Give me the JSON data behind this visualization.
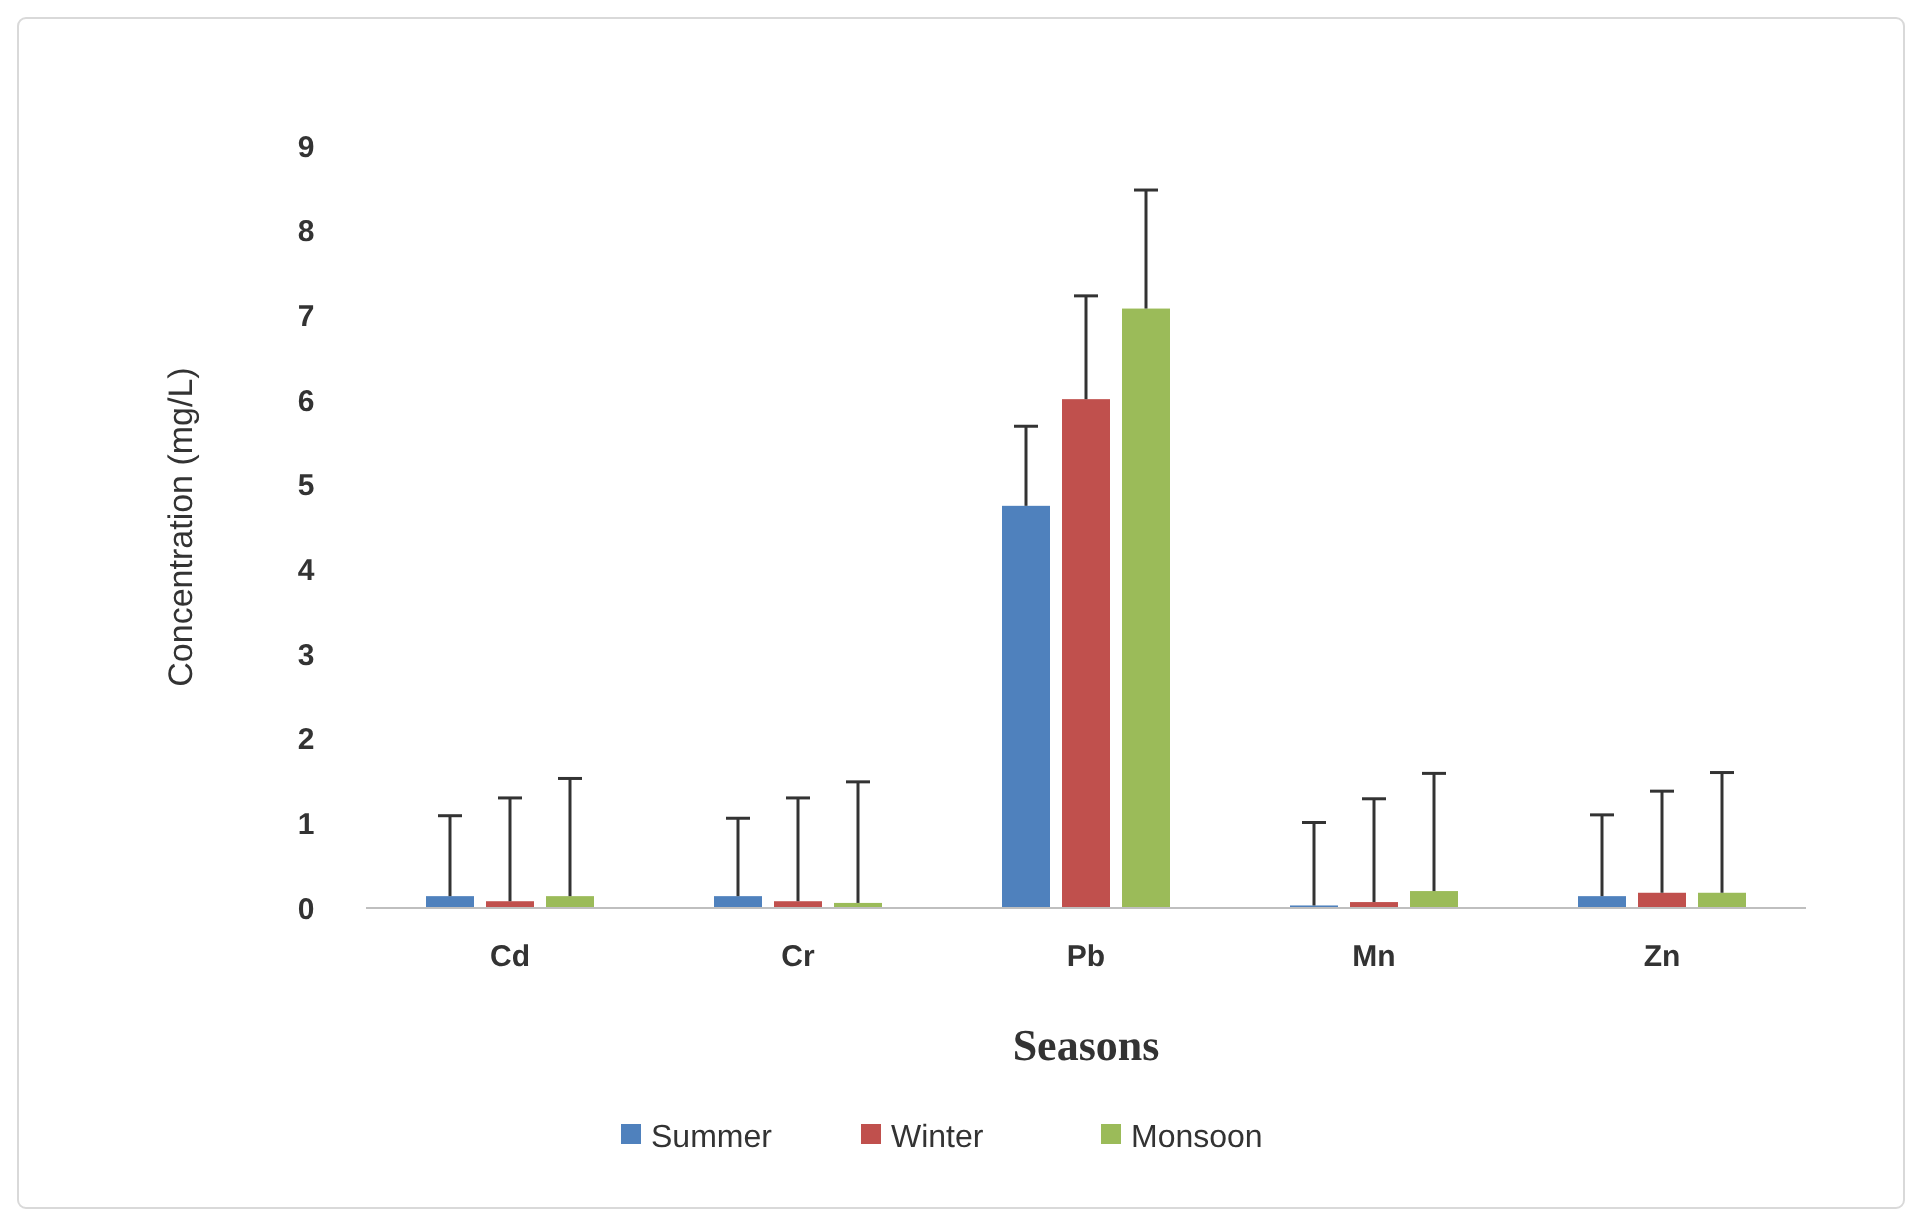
{
  "chart_data": {
    "type": "bar",
    "xlabel": "Seasons",
    "ylabel": "Concentration (mg/L)",
    "categories": [
      "Cd",
      "Cr",
      "Pb",
      "Mn",
      "Zn"
    ],
    "ylim": [
      0,
      9
    ],
    "yticks": [
      0,
      1,
      2,
      3,
      4,
      5,
      6,
      7,
      8,
      9
    ],
    "grid": false,
    "legend": "bottom",
    "series": [
      {
        "name": "Summer",
        "color": "#4f81bd",
        "values": [
          0.14,
          0.14,
          4.75,
          0.03,
          0.14
        ],
        "errors": [
          [
            0.14,
            1.09
          ],
          [
            0.14,
            1.06
          ],
          [
            4.75,
            5.69
          ],
          [
            0.03,
            1.01
          ],
          [
            0.14,
            1.1
          ]
        ]
      },
      {
        "name": "Winter",
        "color": "#c0504d",
        "values": [
          0.08,
          0.08,
          6.01,
          0.07,
          0.18
        ],
        "errors": [
          [
            0.08,
            1.3
          ],
          [
            0.08,
            1.3
          ],
          [
            6.01,
            7.23
          ],
          [
            0.07,
            1.29
          ],
          [
            0.18,
            1.38
          ]
        ]
      },
      {
        "name": "Monsoon",
        "color": "#9bbb59",
        "values": [
          0.14,
          0.06,
          7.08,
          0.2,
          0.18
        ],
        "errors": [
          [
            0.14,
            1.53
          ],
          [
            0.06,
            1.49
          ],
          [
            7.08,
            8.48
          ],
          [
            0.2,
            1.59
          ],
          [
            0.18,
            1.6
          ]
        ]
      }
    ]
  }
}
